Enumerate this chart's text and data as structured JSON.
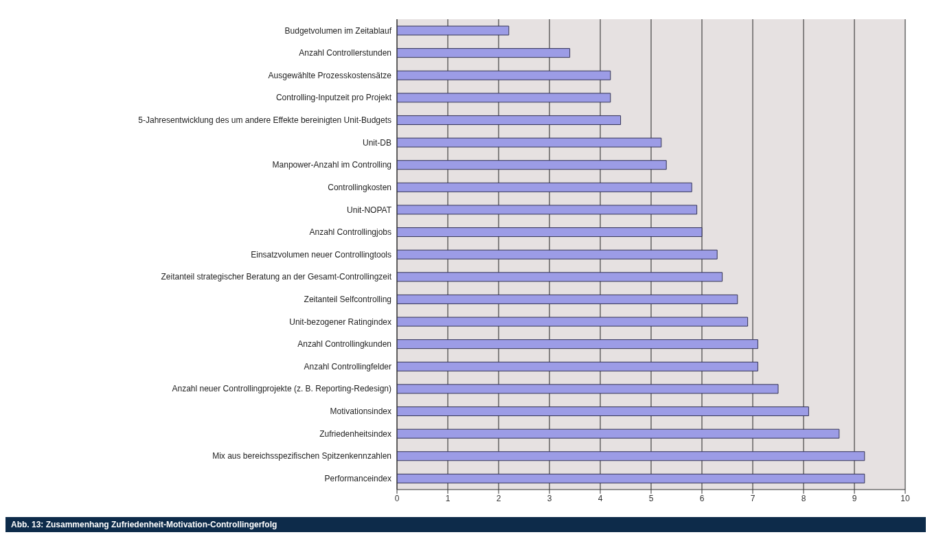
{
  "chart_data": {
    "type": "bar",
    "orientation": "horizontal",
    "categories": [
      "Budgetvolumen im Zeitablauf",
      "Anzahl Controllerstunden",
      "Ausgewählte Prozesskostensätze",
      "Controlling-Inputzeit pro Projekt",
      "5-Jahresentwicklung des um andere Effekte bereinigten Unit-Budgets",
      "Unit-DB",
      "Manpower-Anzahl im Controlling",
      "Controllingkosten",
      "Unit-NOPAT",
      "Anzahl Controllingjobs",
      "Einsatzvolumen neuer Controllingtools",
      "Zeitanteil strategischer Beratung an der Gesamt-Controllingzeit",
      "Zeitanteil Selfcontrolling",
      "Unit-bezogener Ratingindex",
      "Anzahl Controllingkunden",
      "Anzahl Controllingfelder",
      "Anzahl neuer Controllingprojekte (z. B. Reporting-Redesign)",
      "Motivationsindex",
      "Zufriedenheitsindex",
      "Mix aus bereichsspezifischen Spitzenkennzahlen",
      "Performanceindex"
    ],
    "values": [
      2.2,
      3.4,
      4.2,
      4.2,
      4.4,
      5.2,
      5.3,
      5.8,
      5.9,
      6.0,
      6.3,
      6.4,
      6.7,
      6.9,
      7.1,
      7.1,
      7.5,
      8.1,
      8.7,
      9.2,
      9.2
    ],
    "color": "#9c9ce6",
    "xlim": [
      0,
      10
    ],
    "xticks": [
      0,
      1,
      2,
      3,
      4,
      5,
      6,
      7,
      8,
      9,
      10
    ],
    "grid": "x",
    "annotations": [
      "Abb. 13: Zusammenhang Zufriedenheit-Motivation-Controllingerfolg"
    ]
  }
}
